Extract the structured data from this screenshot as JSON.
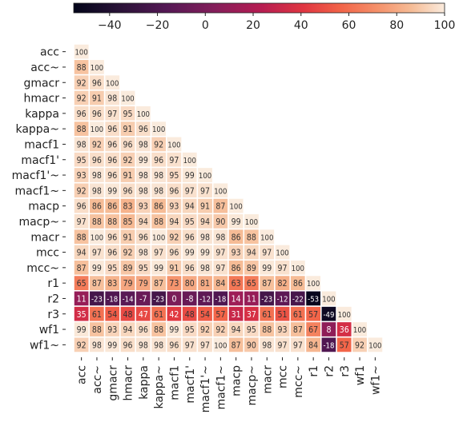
{
  "chart_data": {
    "type": "heatmap",
    "title": "",
    "xlabel": "",
    "ylabel": "",
    "labels": [
      "acc",
      "acc~",
      "gmacr",
      "hmacr",
      "kappa",
      "kappa~",
      "macf1",
      "macf1'",
      "macf1'~",
      "macf1~",
      "macp",
      "macp~",
      "macr",
      "mcc",
      "mcc~",
      "r1",
      "r2",
      "r3",
      "wf1",
      "wf1~"
    ],
    "matrix": [
      [
        100
      ],
      [
        88,
        100
      ],
      [
        92,
        96,
        100
      ],
      [
        92,
        91,
        98,
        100
      ],
      [
        96,
        96,
        97,
        95,
        100
      ],
      [
        88,
        100,
        96,
        91,
        96,
        100
      ],
      [
        98,
        92,
        96,
        96,
        98,
        92,
        100
      ],
      [
        95,
        96,
        96,
        92,
        99,
        96,
        97,
        100
      ],
      [
        93,
        98,
        96,
        91,
        98,
        98,
        95,
        99,
        100
      ],
      [
        92,
        98,
        99,
        96,
        98,
        98,
        96,
        97,
        97,
        100
      ],
      [
        96,
        86,
        86,
        83,
        93,
        86,
        93,
        94,
        91,
        87,
        100
      ],
      [
        97,
        88,
        88,
        85,
        94,
        88,
        94,
        95,
        94,
        90,
        99,
        100
      ],
      [
        88,
        100,
        96,
        91,
        96,
        100,
        92,
        96,
        98,
        98,
        86,
        88,
        100
      ],
      [
        94,
        97,
        96,
        92,
        98,
        97,
        96,
        99,
        99,
        97,
        93,
        94,
        97,
        100
      ],
      [
        87,
        99,
        95,
        89,
        95,
        99,
        91,
        96,
        98,
        97,
        86,
        89,
        99,
        97,
        100
      ],
      [
        65,
        87,
        83,
        79,
        79,
        87,
        73,
        80,
        81,
        84,
        63,
        65,
        87,
        82,
        86,
        100
      ],
      [
        11,
        -23,
        -18,
        -14,
        -7,
        -23,
        0,
        -8,
        -12,
        -18,
        14,
        11,
        -23,
        -12,
        -22,
        -53,
        100
      ],
      [
        35,
        61,
        54,
        48,
        47,
        61,
        42,
        48,
        54,
        57,
        31,
        37,
        61,
        51,
        61,
        57,
        -49,
        100
      ],
      [
        99,
        88,
        93,
        94,
        96,
        88,
        99,
        95,
        92,
        92,
        94,
        95,
        88,
        93,
        87,
        67,
        8,
        36,
        100
      ],
      [
        92,
        98,
        99,
        96,
        98,
        98,
        96,
        97,
        97,
        100,
        87,
        90,
        98,
        97,
        97,
        84,
        -18,
        57,
        92,
        100
      ]
    ],
    "colorbar": {
      "min": -55,
      "max": 100,
      "ticks": [
        -40,
        -20,
        0,
        20,
        40,
        60,
        80,
        100
      ],
      "colormap": "rocket"
    }
  }
}
